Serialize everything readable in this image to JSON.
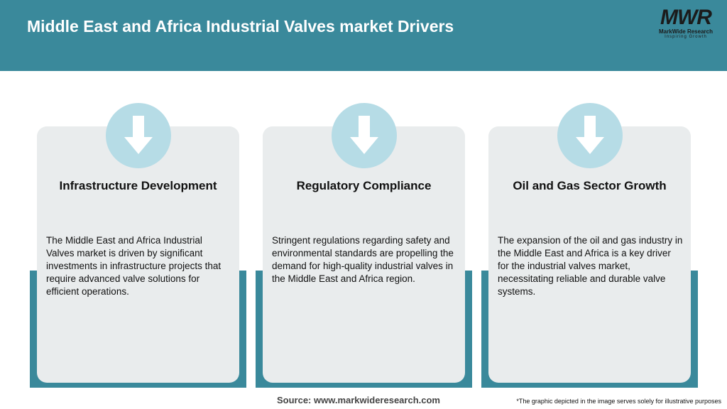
{
  "header": {
    "title": "Middle East and Africa Industrial Valves market Drivers",
    "logo": {
      "mark": "MWR",
      "name": "MarkWide Research",
      "tagline": "Inspiring Growth"
    }
  },
  "cards": [
    {
      "title": "Infrastructure Development",
      "text": "The Middle East and Africa Industrial Valves market is driven by significant investments in infrastructure projects that require advanced valve solutions for efficient operations."
    },
    {
      "title": "Regulatory Compliance",
      "text": "Stringent regulations regarding safety and environmental standards are propelling the demand for high-quality industrial valves in the Middle East and Africa region."
    },
    {
      "title": "Oil and Gas Sector Growth",
      "text": "The expansion of the oil and gas industry in the Middle East and Africa is a key driver for the industrial valves market, necessitating reliable and durable valve systems."
    }
  ],
  "footer": {
    "source": "Source: www.markwideresearch.com",
    "note": "*The graphic depicted in the image serves solely for illustrative purposes"
  }
}
